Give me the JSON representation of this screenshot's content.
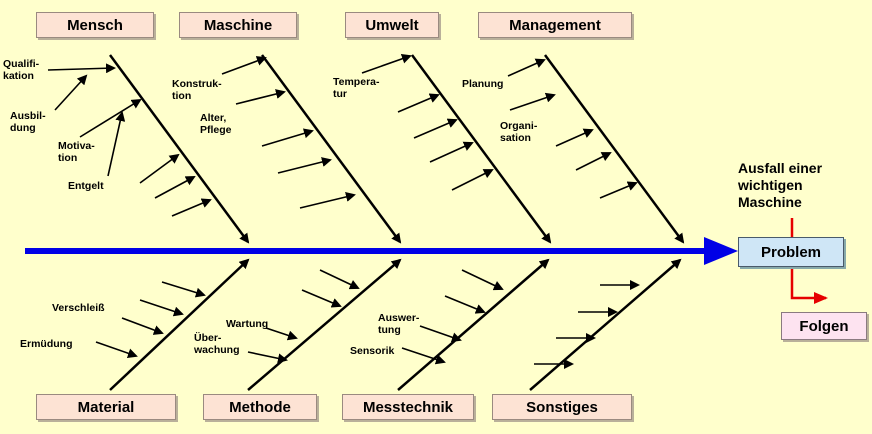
{
  "categories_top": [
    "Mensch",
    "Maschine",
    "Umwelt",
    "Management"
  ],
  "categories_bottom": [
    "Material",
    "Methode",
    "Messtechnik",
    "Sonstiges"
  ],
  "problem": "Problem",
  "consequence": "Folgen",
  "failure_note": "Ausfall einer\nwichtigen\nMaschine",
  "causes": {
    "mensch": [
      "Qualifi-\nkation",
      "Ausbil-\ndung",
      "Motiva-\ntion",
      "Entgelt"
    ],
    "maschine": [
      "Konstruk-\ntion",
      "Alter,\nPflege"
    ],
    "umwelt": [
      "Tempera-\ntur"
    ],
    "management": [
      "Planung",
      "Organi-\nsation"
    ],
    "material": [
      "Verschleiß",
      "Ermüdung"
    ],
    "methode": [
      "Wartung",
      "Über-\nwachung"
    ],
    "messtechnik": [
      "Auswer-\ntung",
      "Sensorik"
    ]
  },
  "colors": {
    "background": "#ffffcc",
    "spine": "#0000e6",
    "consequence_arrow": "#e60000",
    "category_box": "#fde3d4",
    "problem_box": "#cfe6f6",
    "consequence_box": "#fde3f0"
  }
}
